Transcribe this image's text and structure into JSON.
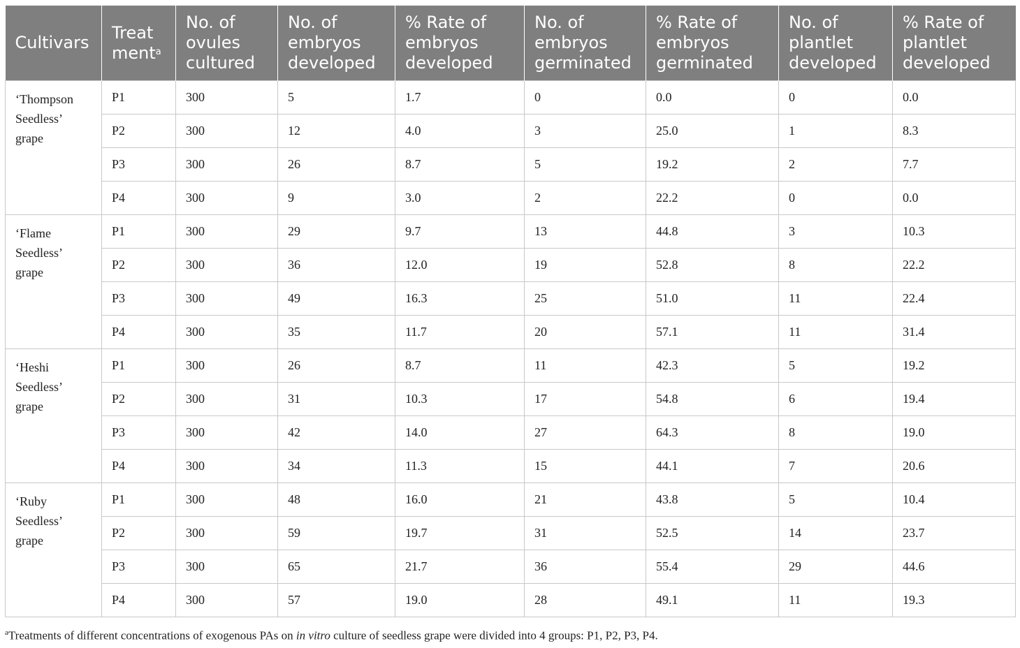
{
  "header": {
    "cultivars": "Cultivars",
    "treatment": "Treat ment",
    "treatment_sup": "a",
    "ovules": "No. of ovules cultured",
    "embryos_developed": "No. of embryos developed",
    "rate_embryos_developed": "% Rate of embryos developed",
    "embryos_germinated": "No. of embryos germinated",
    "rate_embryos_germinated": "% Rate of embryos germinated",
    "plantlet_developed": "No. of plantlet developed",
    "rate_plantlet_developed": "% Rate of plantlet developed"
  },
  "groups": [
    {
      "cultivar_lines": [
        "‘Thompson",
        "Seedless’",
        "grape"
      ],
      "rows": [
        [
          "P1",
          "300",
          "5",
          "1.7",
          "0",
          "0.0",
          "0",
          "0.0"
        ],
        [
          "P2",
          "300",
          "12",
          "4.0",
          "3",
          "25.0",
          "1",
          "8.3"
        ],
        [
          "P3",
          "300",
          "26",
          "8.7",
          "5",
          "19.2",
          "2",
          "7.7"
        ],
        [
          "P4",
          "300",
          "9",
          "3.0",
          "2",
          "22.2",
          "0",
          "0.0"
        ]
      ]
    },
    {
      "cultivar_lines": [
        "‘Flame",
        "Seedless’",
        "grape"
      ],
      "rows": [
        [
          "P1",
          "300",
          "29",
          "9.7",
          "13",
          "44.8",
          "3",
          "10.3"
        ],
        [
          "P2",
          "300",
          "36",
          "12.0",
          "19",
          "52.8",
          "8",
          "22.2"
        ],
        [
          "P3",
          "300",
          "49",
          "16.3",
          "25",
          "51.0",
          "11",
          "22.4"
        ],
        [
          "P4",
          "300",
          "35",
          "11.7",
          "20",
          "57.1",
          "11",
          "31.4"
        ]
      ]
    },
    {
      "cultivar_lines": [
        "‘Heshi",
        "Seedless’",
        "grape"
      ],
      "rows": [
        [
          "P1",
          "300",
          "26",
          "8.7",
          "11",
          "42.3",
          "5",
          "19.2"
        ],
        [
          "P2",
          "300",
          "31",
          "10.3",
          "17",
          "54.8",
          "6",
          "19.4"
        ],
        [
          "P3",
          "300",
          "42",
          "14.0",
          "27",
          "64.3",
          "8",
          "19.0"
        ],
        [
          "P4",
          "300",
          "34",
          "11.3",
          "15",
          "44.1",
          "7",
          "20.6"
        ]
      ]
    },
    {
      "cultivar_lines": [
        "‘Ruby",
        "Seedless’",
        "grape"
      ],
      "rows": [
        [
          "P1",
          "300",
          "48",
          "16.0",
          "21",
          "43.8",
          "5",
          "10.4"
        ],
        [
          "P2",
          "300",
          "59",
          "19.7",
          "31",
          "52.5",
          "14",
          "23.7"
        ],
        [
          "P3",
          "300",
          "65",
          "21.7",
          "36",
          "55.4",
          "29",
          "44.6"
        ],
        [
          "P4",
          "300",
          "57",
          "19.0",
          "28",
          "49.1",
          "11",
          "19.3"
        ]
      ]
    }
  ],
  "footnote": {
    "marker": "a",
    "text_before": "Treatments of different concentrations of exogenous PAs on ",
    "italic": "in vitro",
    "text_after": " culture of seedless grape were divided into 4 groups: P1, P2, P3, P4."
  }
}
